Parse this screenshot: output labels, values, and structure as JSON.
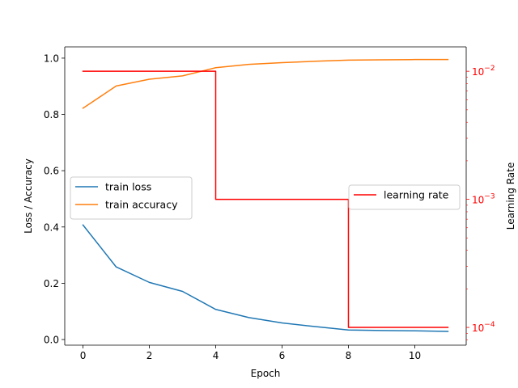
{
  "chart_data": {
    "type": "line",
    "x": [
      0,
      1,
      2,
      3,
      4,
      5,
      6,
      7,
      8,
      9,
      10,
      11
    ],
    "xlabel": "Epoch",
    "ylabel": "Loss / Accuracy",
    "y2label": "Learning Rate",
    "xlim": [
      -0.55,
      11.55
    ],
    "ylim": [
      -0.02,
      1.04
    ],
    "y2lim": [
      7.27e-05,
      0.0155
    ],
    "y2scale": "log",
    "xticks": [
      0,
      2,
      4,
      6,
      8,
      10
    ],
    "yticks": [
      0.0,
      0.2,
      0.4,
      0.6,
      0.8,
      1.0
    ],
    "y2ticks": [
      {
        "value": 0.0001,
        "base": "10",
        "exp": "−4"
      },
      {
        "value": 0.001,
        "base": "10",
        "exp": "−3"
      },
      {
        "value": 0.01,
        "base": "10",
        "exp": "−2"
      }
    ],
    "grid": false,
    "series": [
      {
        "name": "train loss",
        "axis": "left",
        "color": "#1f77b4",
        "values": [
          0.407,
          0.258,
          0.203,
          0.171,
          0.107,
          0.078,
          0.059,
          0.046,
          0.034,
          0.032,
          0.031,
          0.029
        ]
      },
      {
        "name": "train accuracy",
        "axis": "left",
        "color": "#ff7f0e",
        "values": [
          0.822,
          0.901,
          0.925,
          0.937,
          0.966,
          0.978,
          0.984,
          0.989,
          0.993,
          0.994,
          0.995,
          0.995
        ]
      },
      {
        "name": "learning rate",
        "axis": "right",
        "color": "#ff0000",
        "drawstyle": "steps-post",
        "values": [
          0.01,
          0.01,
          0.01,
          0.01,
          0.001,
          0.001,
          0.001,
          0.001,
          0.0001,
          0.0001,
          0.0001,
          0.0001
        ]
      }
    ],
    "legends": [
      {
        "placement": "center-left",
        "entries": [
          "train loss",
          "train accuracy"
        ]
      },
      {
        "placement": "center-right",
        "entries": [
          "learning rate"
        ]
      }
    ],
    "right_axis_color": "#ff0000"
  }
}
